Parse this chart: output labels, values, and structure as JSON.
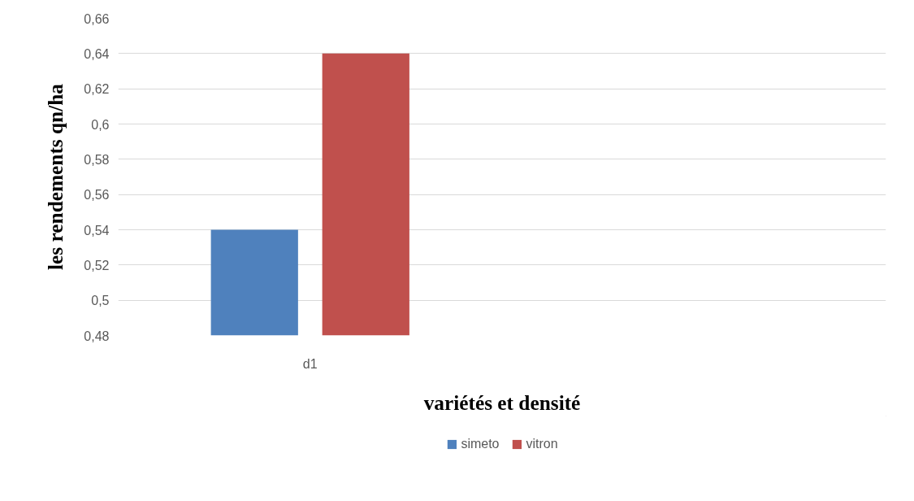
{
  "chart_data": {
    "type": "bar",
    "xlabel": "variétés et densité",
    "ylabel": "les rendements qn/ha",
    "categories": [
      "d1",
      null
    ],
    "series": [
      {
        "name": "simeto",
        "color": "#4f81bd",
        "values": [
          0.54,
          null
        ]
      },
      {
        "name": "vitron",
        "color": "#c0504d",
        "values": [
          0.64,
          null
        ]
      }
    ],
    "ylim": [
      0.48,
      0.66
    ],
    "yticks": [
      {
        "value": 0.48,
        "label": "0,48"
      },
      {
        "value": 0.5,
        "label": "0,5"
      },
      {
        "value": 0.52,
        "label": "0,52"
      },
      {
        "value": 0.54,
        "label": "0,54"
      },
      {
        "value": 0.56,
        "label": "0,56"
      },
      {
        "value": 0.58,
        "label": "0,58"
      },
      {
        "value": 0.6,
        "label": "0,6"
      },
      {
        "value": 0.62,
        "label": "0,62"
      },
      {
        "value": 0.64,
        "label": "0,64"
      },
      {
        "value": 0.66,
        "label": "0,66"
      }
    ],
    "grid": "y",
    "legend": "bottom"
  }
}
